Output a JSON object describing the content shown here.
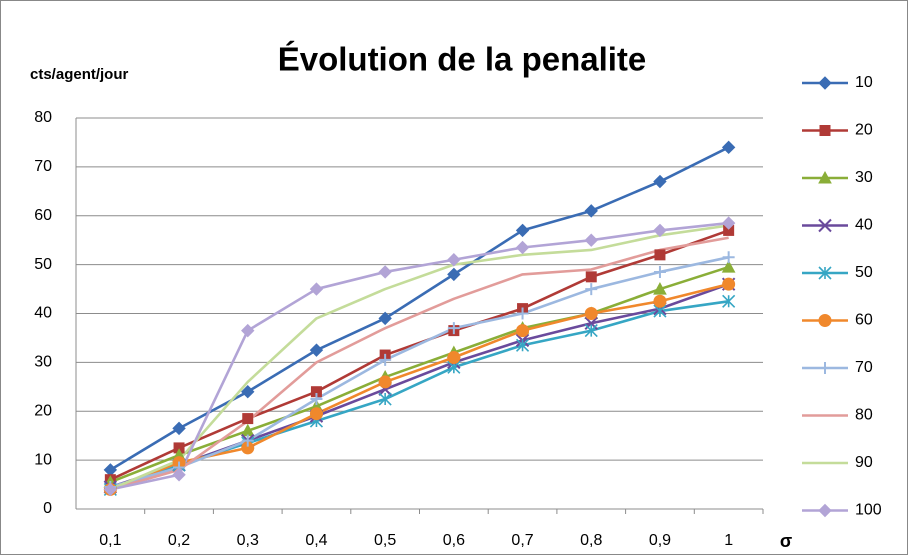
{
  "chart_data": {
    "type": "line",
    "title": "Évolution de la penalite",
    "y_axis_label": "cts/agent/jour",
    "x_axis_label": "σ",
    "categories": [
      "0,1",
      "0,2",
      "0,3",
      "0,4",
      "0,5",
      "0,6",
      "0,7",
      "0,8",
      "0,9",
      "1"
    ],
    "ylim": [
      0,
      80
    ],
    "yticks": [
      0,
      10,
      20,
      30,
      40,
      50,
      60,
      70,
      80
    ],
    "grid": true,
    "legend": "right",
    "series": [
      {
        "name": "10",
        "color": "#3a6cb4",
        "marker": "diamond",
        "values": [
          8,
          16.5,
          24,
          32.5,
          39,
          48,
          57,
          61,
          67,
          74
        ]
      },
      {
        "name": "20",
        "color": "#b03a36",
        "marker": "square",
        "values": [
          6,
          12.5,
          18.5,
          24,
          31.5,
          36.5,
          41,
          47.5,
          52,
          57
        ]
      },
      {
        "name": "30",
        "color": "#8aae38",
        "marker": "triangle",
        "values": [
          5.5,
          11,
          16,
          21,
          27,
          32,
          37,
          40,
          45,
          49.5
        ]
      },
      {
        "name": "40",
        "color": "#6a4a9c",
        "marker": "x",
        "values": [
          4.5,
          9,
          14,
          19,
          24.5,
          30,
          34.5,
          38,
          41,
          46
        ]
      },
      {
        "name": "50",
        "color": "#36a6c4",
        "marker": "star",
        "values": [
          4,
          9,
          13.5,
          18,
          22.5,
          29,
          33.5,
          36.5,
          40.5,
          42.5
        ]
      },
      {
        "name": "60",
        "color": "#f0882c",
        "marker": "circle",
        "values": [
          4,
          9.5,
          12.5,
          19.5,
          26,
          31,
          36.5,
          40,
          42.5,
          46
        ]
      },
      {
        "name": "70",
        "color": "#9cb8e0",
        "marker": "plus",
        "values": [
          4.5,
          8.5,
          14,
          22.5,
          30.5,
          37,
          40,
          45,
          48.5,
          51.5
        ]
      },
      {
        "name": "80",
        "color": "#e29c9a",
        "marker": "none",
        "values": [
          4,
          8,
          18,
          30,
          37,
          43,
          48,
          49,
          53,
          55.5
        ]
      },
      {
        "name": "90",
        "color": "#c4dc9a",
        "marker": "none",
        "values": [
          4,
          10,
          26,
          39,
          45,
          50,
          52,
          53,
          56,
          58
        ]
      },
      {
        "name": "100",
        "color": "#b2a4d6",
        "marker": "diamond",
        "values": [
          4,
          7,
          36.5,
          45,
          48.5,
          51,
          53.5,
          55,
          57,
          58.5
        ]
      }
    ]
  }
}
